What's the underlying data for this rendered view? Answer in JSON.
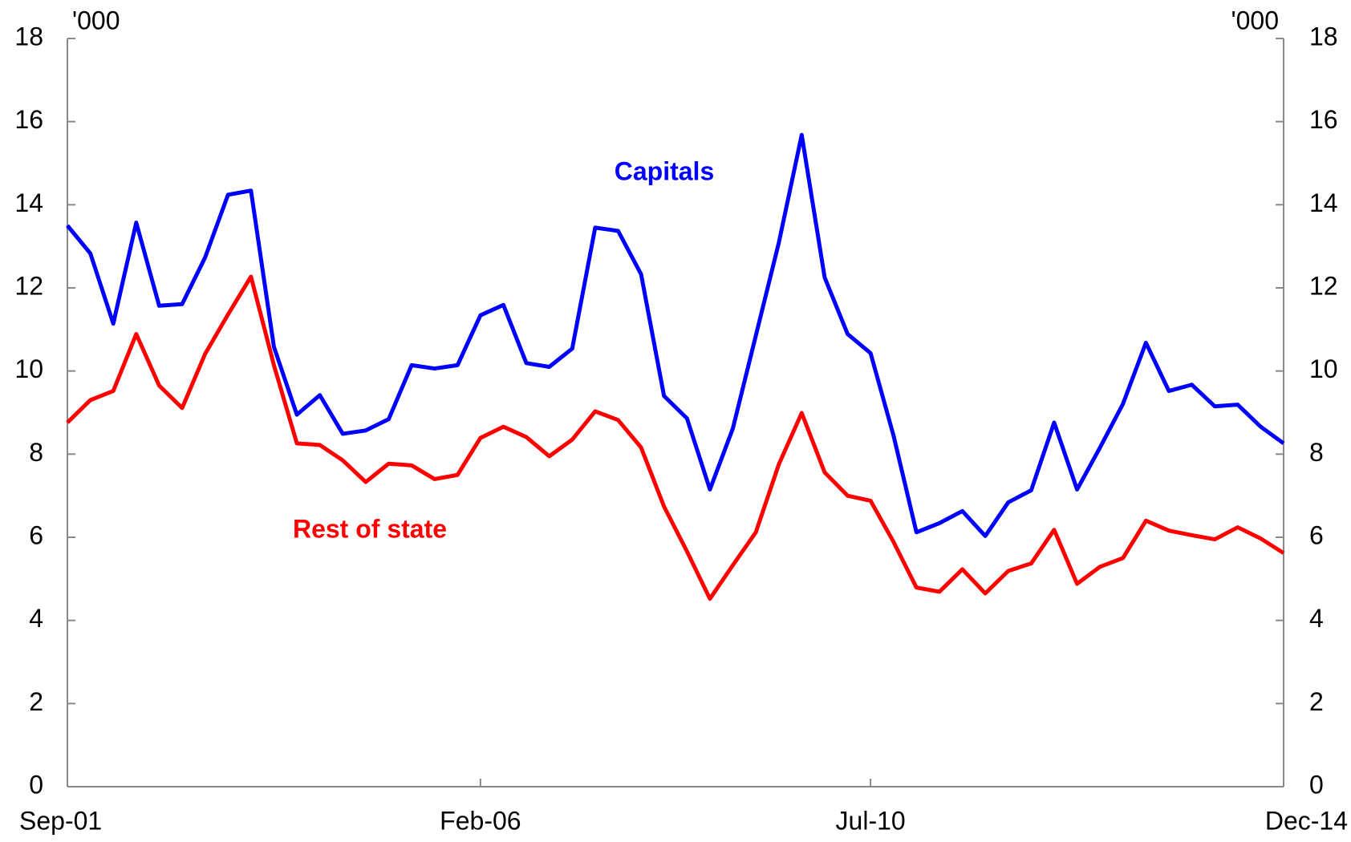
{
  "chart_data": {
    "type": "line",
    "ylabel": "'000",
    "y2label": "'000",
    "categories": [
      "Sep-01",
      null,
      null,
      null,
      null,
      null,
      null,
      null,
      null,
      null,
      null,
      null,
      null,
      null,
      null,
      null,
      null,
      null,
      "Feb-06",
      null,
      null,
      null,
      null,
      null,
      null,
      null,
      null,
      null,
      null,
      null,
      null,
      null,
      null,
      null,
      null,
      "Jul-10",
      null,
      null,
      null,
      null,
      null,
      null,
      null,
      null,
      null,
      null,
      null,
      null,
      null,
      null,
      null,
      null,
      null,
      "Dec-14"
    ],
    "series": [
      {
        "name": "Capitals",
        "color": "#0000ff",
        "values": [
          13.5,
          12.83,
          11.14,
          13.57,
          11.57,
          11.61,
          12.73,
          14.24,
          14.34,
          10.58,
          8.95,
          9.42,
          8.49,
          8.57,
          8.84,
          10.14,
          10.06,
          10.14,
          11.34,
          11.59,
          10.19,
          10.1,
          10.54,
          13.45,
          13.37,
          12.33,
          9.4,
          8.86,
          7.15,
          8.62,
          10.85,
          13.08,
          15.68,
          12.25,
          10.89,
          10.43,
          8.45,
          6.12,
          6.34,
          6.63,
          6.03,
          6.84,
          7.13,
          8.76,
          7.15,
          8.16,
          9.21,
          10.68,
          9.52,
          9.67,
          9.15,
          9.19,
          8.66,
          8.26
        ]
      },
      {
        "name": "Rest of state",
        "color": "#ff0000",
        "values": [
          8.76,
          9.3,
          9.52,
          10.89,
          9.65,
          9.11,
          10.41,
          11.36,
          12.27,
          10.14,
          8.26,
          8.22,
          7.85,
          7.33,
          7.77,
          7.73,
          7.4,
          7.5,
          8.39,
          8.66,
          8.41,
          7.95,
          8.35,
          9.03,
          8.82,
          8.16,
          6.74,
          5.66,
          4.52,
          5.33,
          6.12,
          7.75,
          8.99,
          7.56,
          7.0,
          6.88,
          5.89,
          4.79,
          4.69,
          5.23,
          4.65,
          5.19,
          5.37,
          6.18,
          4.88,
          5.29,
          5.5,
          6.4,
          6.16,
          6.05,
          5.95,
          6.24,
          5.97,
          5.62
        ]
      }
    ],
    "ylim": [
      0,
      18
    ],
    "yticks": [
      0,
      2,
      4,
      6,
      8,
      10,
      12,
      14,
      16,
      18
    ],
    "y2lim": [
      0,
      18
    ],
    "y2ticks": [
      0,
      2,
      4,
      6,
      8,
      10,
      12,
      14,
      16,
      18
    ],
    "grid": false
  }
}
